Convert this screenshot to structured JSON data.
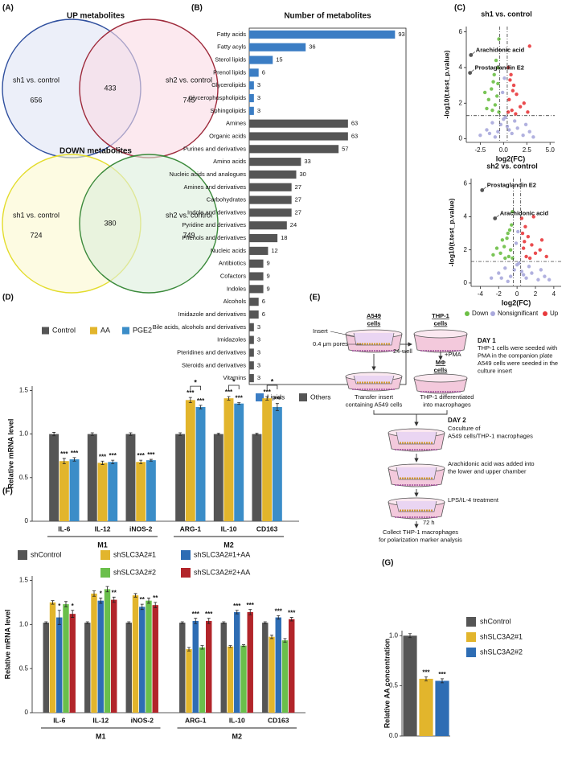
{
  "panel_labels": [
    "(A)",
    "(B)",
    "(C)",
    "(D)",
    "(E)",
    "(F)",
    "(G)"
  ],
  "chart_data": [
    {
      "type": "venn",
      "title": "UP metabolites",
      "sets": [
        {
          "name": "sh1 vs. control",
          "color": "#2f4f9e",
          "fill": "#dfe5f5",
          "only": 656
        },
        {
          "name": "sh2 vs. control",
          "color": "#9e2a3b",
          "fill": "#fadbe5",
          "only": 745
        }
      ],
      "overlap": 433
    },
    {
      "type": "venn",
      "title": "DOWN  metabolites",
      "sets": [
        {
          "name": "sh1 vs. control",
          "color": "#e3dc2c",
          "fill": "#fbf8cf",
          "only": 724
        },
        {
          "name": "sh2 vs. control",
          "color": "#3b8a3b",
          "fill": "#dcefdc",
          "only": 749
        }
      ],
      "overlap": 380
    },
    {
      "type": "bar",
      "orientation": "horizontal",
      "title": "Number of metabolites",
      "categories": [
        "Fatty acids",
        "Fatty acyls",
        "Sterol lipids",
        "Prenol lipids",
        "Glycerolipids",
        "Glycerophospholipids",
        "Sphingolipids",
        "Amines",
        "Organic acids",
        "Purines and derivatives",
        "Amino acids",
        "Nucleic acids and analogues",
        "Amines and derivatives",
        "Carbohydrates",
        "Indole and derivatives",
        "Pyridine and derivatives",
        "Phenols and derivatives",
        "Nucleic acids",
        "Antibiotics",
        "Cofactors",
        "Indoles",
        "Alcohols",
        "Imidazole and derivatives",
        "Bile acids, alcohols and derivatives",
        "Imidazoles",
        "Pteridines and derivatives",
        "Steroids and derivatives",
        "Vitamins"
      ],
      "series": [
        {
          "name": "Lipids",
          "color": "#3b7dc4",
          "values": [
            93,
            36,
            15,
            6,
            3,
            3,
            3,
            null,
            null,
            null,
            null,
            null,
            null,
            null,
            null,
            null,
            null,
            null,
            null,
            null,
            null,
            null,
            null,
            null,
            null,
            null,
            null,
            null
          ]
        },
        {
          "name": "Others",
          "color": "#555555",
          "values": [
            null,
            null,
            null,
            null,
            null,
            null,
            null,
            63,
            63,
            57,
            33,
            30,
            27,
            27,
            27,
            24,
            18,
            12,
            9,
            9,
            9,
            6,
            6,
            3,
            3,
            3,
            3,
            3
          ]
        }
      ],
      "xlim": [
        0,
        100
      ]
    },
    {
      "type": "scatter",
      "title": "sh1 vs. control",
      "xlabel": "log2(FC)",
      "ylabel": "-log10(t.test_p.value)",
      "xlim": [
        -4,
        5.5
      ],
      "ylim": [
        -0.2,
        6.3
      ],
      "xticks": [
        -2.5,
        {
          "value": 0,
          "label": "0.0"
        },
        2.5,
        {
          "value": 5,
          "label": "5.0"
        }
      ],
      "yticks": [
        0,
        2,
        4,
        6
      ],
      "thresholds": {
        "x": [
          -0.4,
          0.4
        ],
        "y": 1.3
      },
      "series": [
        {
          "name": "Down",
          "color": "#6cbf45",
          "x": [
            -0.5,
            -0.8,
            -1.0,
            -1.3,
            -0.6,
            -1.6,
            -0.9,
            -2.0,
            -0.7,
            -1.2,
            -0.5,
            -1.8,
            -0.6,
            -1.1
          ],
          "y": [
            5.6,
            4.4,
            3.6,
            2.8,
            3.1,
            2.2,
            1.9,
            2.6,
            2.4,
            1.6,
            1.5,
            1.7,
            4.0,
            3.2
          ]
        },
        {
          "name": "Nonsignificant",
          "color": "#a9a8dc",
          "x": [
            -2.5,
            -1.8,
            -1.2,
            -0.6,
            0.0,
            0.4,
            0.9,
            1.5,
            2.1,
            2.8,
            -0.3,
            0.2,
            -0.9,
            1.2,
            0.6,
            -1.5,
            2.4,
            3.2,
            -0.1,
            0.1
          ],
          "y": [
            0.2,
            0.5,
            0.9,
            0.4,
            1.1,
            0.7,
            0.3,
            0.6,
            0.2,
            0.4,
            0.8,
            1.2,
            0.1,
            1.0,
            0.5,
            0.3,
            0.8,
            0.1,
            2.6,
            3.4
          ]
        },
        {
          "name": "Up",
          "color": "#e8393c",
          "x": [
            0.5,
            0.8,
            1.1,
            1.4,
            0.6,
            1.8,
            0.9,
            2.2,
            0.7,
            1.3,
            2.6,
            0.5,
            1.0,
            2.8
          ],
          "y": [
            4.0,
            3.6,
            3.0,
            2.5,
            2.2,
            1.8,
            1.6,
            2.0,
            3.3,
            1.4,
            1.5,
            1.5,
            2.7,
            5.2
          ]
        }
      ],
      "annotations": [
        {
          "text": "Arachidonic acid",
          "x": -3.5,
          "y": 4.7,
          "color": "#555555"
        },
        {
          "text": "Prostaglandin E2",
          "x": -3.6,
          "y": 3.7,
          "color": "#555555"
        }
      ]
    },
    {
      "type": "scatter",
      "title": "sh2 vs. control",
      "xlabel": "log2(FC)",
      "ylabel": "-log10(t.test_p.value)",
      "xlim": [
        -5,
        4.8
      ],
      "ylim": [
        -0.2,
        6.3
      ],
      "xticks": [
        -4,
        -2,
        0,
        2,
        4
      ],
      "yticks": [
        0,
        2,
        4,
        6
      ],
      "thresholds": {
        "x": [
          -0.4,
          0.4
        ],
        "y": 1.3
      },
      "series": [
        {
          "color": "#6cbf45",
          "x": [
            -0.5,
            -0.8,
            -1.1,
            -1.4,
            -0.7,
            -1.8,
            -0.9,
            -2.2,
            -0.6,
            -1.3,
            -1.6,
            -0.5,
            -1.0,
            -2.6
          ],
          "y": [
            4.3,
            3.2,
            2.7,
            2.2,
            2.0,
            1.8,
            1.6,
            2.1,
            3.5,
            1.5,
            2.6,
            1.5,
            3.0,
            1.7
          ]
        },
        {
          "color": "#a9a8dc",
          "x": [
            -2.8,
            -2.0,
            -1.3,
            -0.7,
            0.0,
            0.5,
            1.0,
            1.6,
            2.3,
            3.0,
            -0.3,
            0.2,
            -1.0,
            1.3,
            0.7,
            -1.7,
            2.6,
            3.5,
            -0.1,
            0.1
          ],
          "y": [
            0.3,
            0.6,
            0.9,
            0.4,
            1.1,
            0.7,
            0.3,
            0.6,
            0.2,
            0.4,
            0.8,
            1.2,
            0.1,
            1.0,
            0.5,
            0.3,
            0.8,
            0.2,
            2.4,
            3.1
          ]
        },
        {
          "color": "#e8393c",
          "x": [
            0.5,
            0.9,
            1.2,
            1.6,
            0.7,
            2.0,
            1.0,
            2.5,
            0.6,
            1.4,
            3.2,
            0.8,
            1.8,
            2.7
          ],
          "y": [
            3.9,
            3.4,
            2.8,
            2.3,
            2.1,
            1.8,
            1.6,
            2.0,
            3.0,
            1.5,
            1.6,
            2.5,
            4.0,
            2.6
          ]
        }
      ],
      "annotations": [
        {
          "text": "Prostaglandin E2",
          "x": -3.8,
          "y": 5.6,
          "color": "#555555"
        },
        {
          "text": "Arachidonic acid",
          "x": -2.4,
          "y": 3.9,
          "color": "#555555"
        }
      ]
    },
    {
      "type": "bar",
      "ylabel": "Relative mRNA level",
      "categories": [
        "IL-6",
        "IL-12",
        "iNOS-2",
        "ARG-1",
        "IL-10",
        "CD163"
      ],
      "groups": [
        {
          "label": "M1",
          "start": 0,
          "end": 2
        },
        {
          "label": "M2",
          "start": 3,
          "end": 5
        }
      ],
      "series": [
        {
          "name": "Control",
          "color": "#555555",
          "values": [
            1,
            1,
            1,
            1,
            1,
            1
          ],
          "errors": [
            0.02,
            0.015,
            0.015,
            0.015,
            0.01,
            0.01
          ],
          "significance": [
            null,
            null,
            null,
            null,
            null,
            null
          ]
        },
        {
          "name": "AA",
          "color": "#e2b52c",
          "values": [
            0.69,
            0.67,
            0.68,
            1.39,
            1.41,
            1.41
          ],
          "errors": [
            0.03,
            0.02,
            0.02,
            0.03,
            0.02,
            0.02
          ],
          "significance": [
            "***",
            "***",
            "***",
            "***",
            "***",
            "***"
          ]
        },
        {
          "name": "PGE2",
          "color": "#3b8dc8",
          "values": [
            0.71,
            0.68,
            0.7,
            1.31,
            1.35,
            1.31
          ],
          "errors": [
            0.02,
            0.02,
            0.01,
            0.02,
            0.01,
            0.04
          ],
          "significance": [
            "***",
            "***",
            "***",
            "***",
            "***",
            "***"
          ]
        }
      ],
      "brackets": [
        {
          "category": 3,
          "from": 1,
          "to": 2,
          "text": "*"
        },
        {
          "category": 4,
          "from": 1,
          "to": 2,
          "text": "*"
        },
        {
          "category": 5,
          "from": 1,
          "to": 2,
          "text": "*"
        }
      ],
      "ylim": [
        0,
        1.55
      ],
      "yticks": [
        0,
        0.5,
        {
          "value": 1,
          "label": "1.0"
        },
        1.5
      ]
    },
    {
      "type": "bar",
      "ylabel": "Relative mRNA level",
      "categories": [
        "IL-6",
        "IL-12",
        "iNOS-2",
        "ARG-1",
        "IL-10",
        "CD163"
      ],
      "groups": [
        {
          "label": "M1",
          "start": 0,
          "end": 2
        },
        {
          "label": "M2",
          "start": 3,
          "end": 5
        }
      ],
      "series": [
        {
          "name": "shControl",
          "color": "#555555",
          "values": [
            1.02,
            1.02,
            1.02,
            1.02,
            1.02,
            1.02
          ],
          "errors": [
            0.01,
            0.01,
            0.01,
            0.01,
            0.01,
            0.01
          ],
          "significance": [
            null,
            null,
            null,
            null,
            null,
            null
          ]
        },
        {
          "name": "shSLC3A2#1",
          "color": "#e2b52c",
          "values": [
            1.25,
            1.35,
            1.33,
            0.72,
            0.75,
            0.86
          ],
          "errors": [
            0.02,
            0.03,
            0.02,
            0.02,
            0.01,
            0.02
          ],
          "significance": [
            null,
            null,
            null,
            null,
            null,
            null
          ]
        },
        {
          "name": "shSLC3A2#1+AA",
          "color": "#2e6db4",
          "values": [
            1.08,
            1.27,
            1.2,
            1.04,
            1.14,
            1.08
          ],
          "errors": [
            0.08,
            0.03,
            0.03,
            0.03,
            0.02,
            0.02
          ],
          "significance": [
            "*",
            "*",
            "**",
            "***",
            "***",
            "***"
          ]
        },
        {
          "name": "shSLC3A2#2",
          "color": "#6abf4b",
          "values": [
            1.23,
            1.4,
            1.27,
            0.74,
            0.76,
            0.82
          ],
          "errors": [
            0.03,
            0.03,
            0.03,
            0.02,
            0.01,
            0.02
          ],
          "significance": [
            null,
            null,
            null,
            null,
            null,
            null
          ]
        },
        {
          "name": "shSLC3A2#2+AA",
          "color": "#b2252a",
          "values": [
            1.12,
            1.28,
            1.22,
            1.04,
            1.14,
            1.06
          ],
          "errors": [
            0.04,
            0.03,
            0.03,
            0.03,
            0.03,
            0.02
          ],
          "significance": [
            "*",
            "**",
            "**",
            "***",
            "***",
            "***"
          ]
        }
      ],
      "ylim": [
        0,
        1.55
      ],
      "yticks": [
        0,
        0.5,
        {
          "value": 1,
          "label": "1.0"
        },
        1.5
      ]
    },
    {
      "type": "bar",
      "ylabel": "Relative AA concentration",
      "categories": [
        "shControl",
        "shSLC3A2#1",
        "shSLC3A2#2"
      ],
      "values": [
        1,
        0.57,
        0.55
      ],
      "errors": [
        0.02,
        0.02,
        0.02
      ],
      "significance": [
        null,
        "***",
        "***"
      ],
      "colors": [
        "#555555",
        "#e2b52c",
        "#2e6db4"
      ],
      "ylim": [
        0,
        1.05
      ],
      "yticks": [
        {
          "value": 0,
          "label": "0.0"
        },
        0.5,
        {
          "value": 1,
          "label": "1.0"
        }
      ]
    }
  ],
  "diagram": {
    "a549": [
      "A549",
      "cells"
    ],
    "thp1": [
      "THP-1",
      "cells"
    ],
    "insert": "Insert",
    "pores": "0.4 μm pores",
    "well": "24-well",
    "pma": "+PMA",
    "mphi": [
      "MΦ",
      "cells"
    ],
    "day1": {
      "title": "DAY 1",
      "lines": [
        "THP-1 cells were seeded with",
        "PMA in the companion plate",
        "A549 cells were seeded in the",
        "culture insert"
      ]
    },
    "transfer": [
      "Transfer insert",
      "containing A549 cells"
    ],
    "differentiated": [
      "THP-1 differentiated",
      "into macrophages"
    ],
    "day2": {
      "title": "DAY 2",
      "lines": [
        "Coculture of",
        "A549 cells/THP-1 macrophages"
      ]
    },
    "aa": [
      "Arachidonic acid was added into",
      "the lower and upper chamber"
    ],
    "lps": "LPS/IL-4 treatment",
    "time": "72 h",
    "collect": [
      "Collect THP-1 macrophages",
      "for polarization marker analysis"
    ]
  }
}
